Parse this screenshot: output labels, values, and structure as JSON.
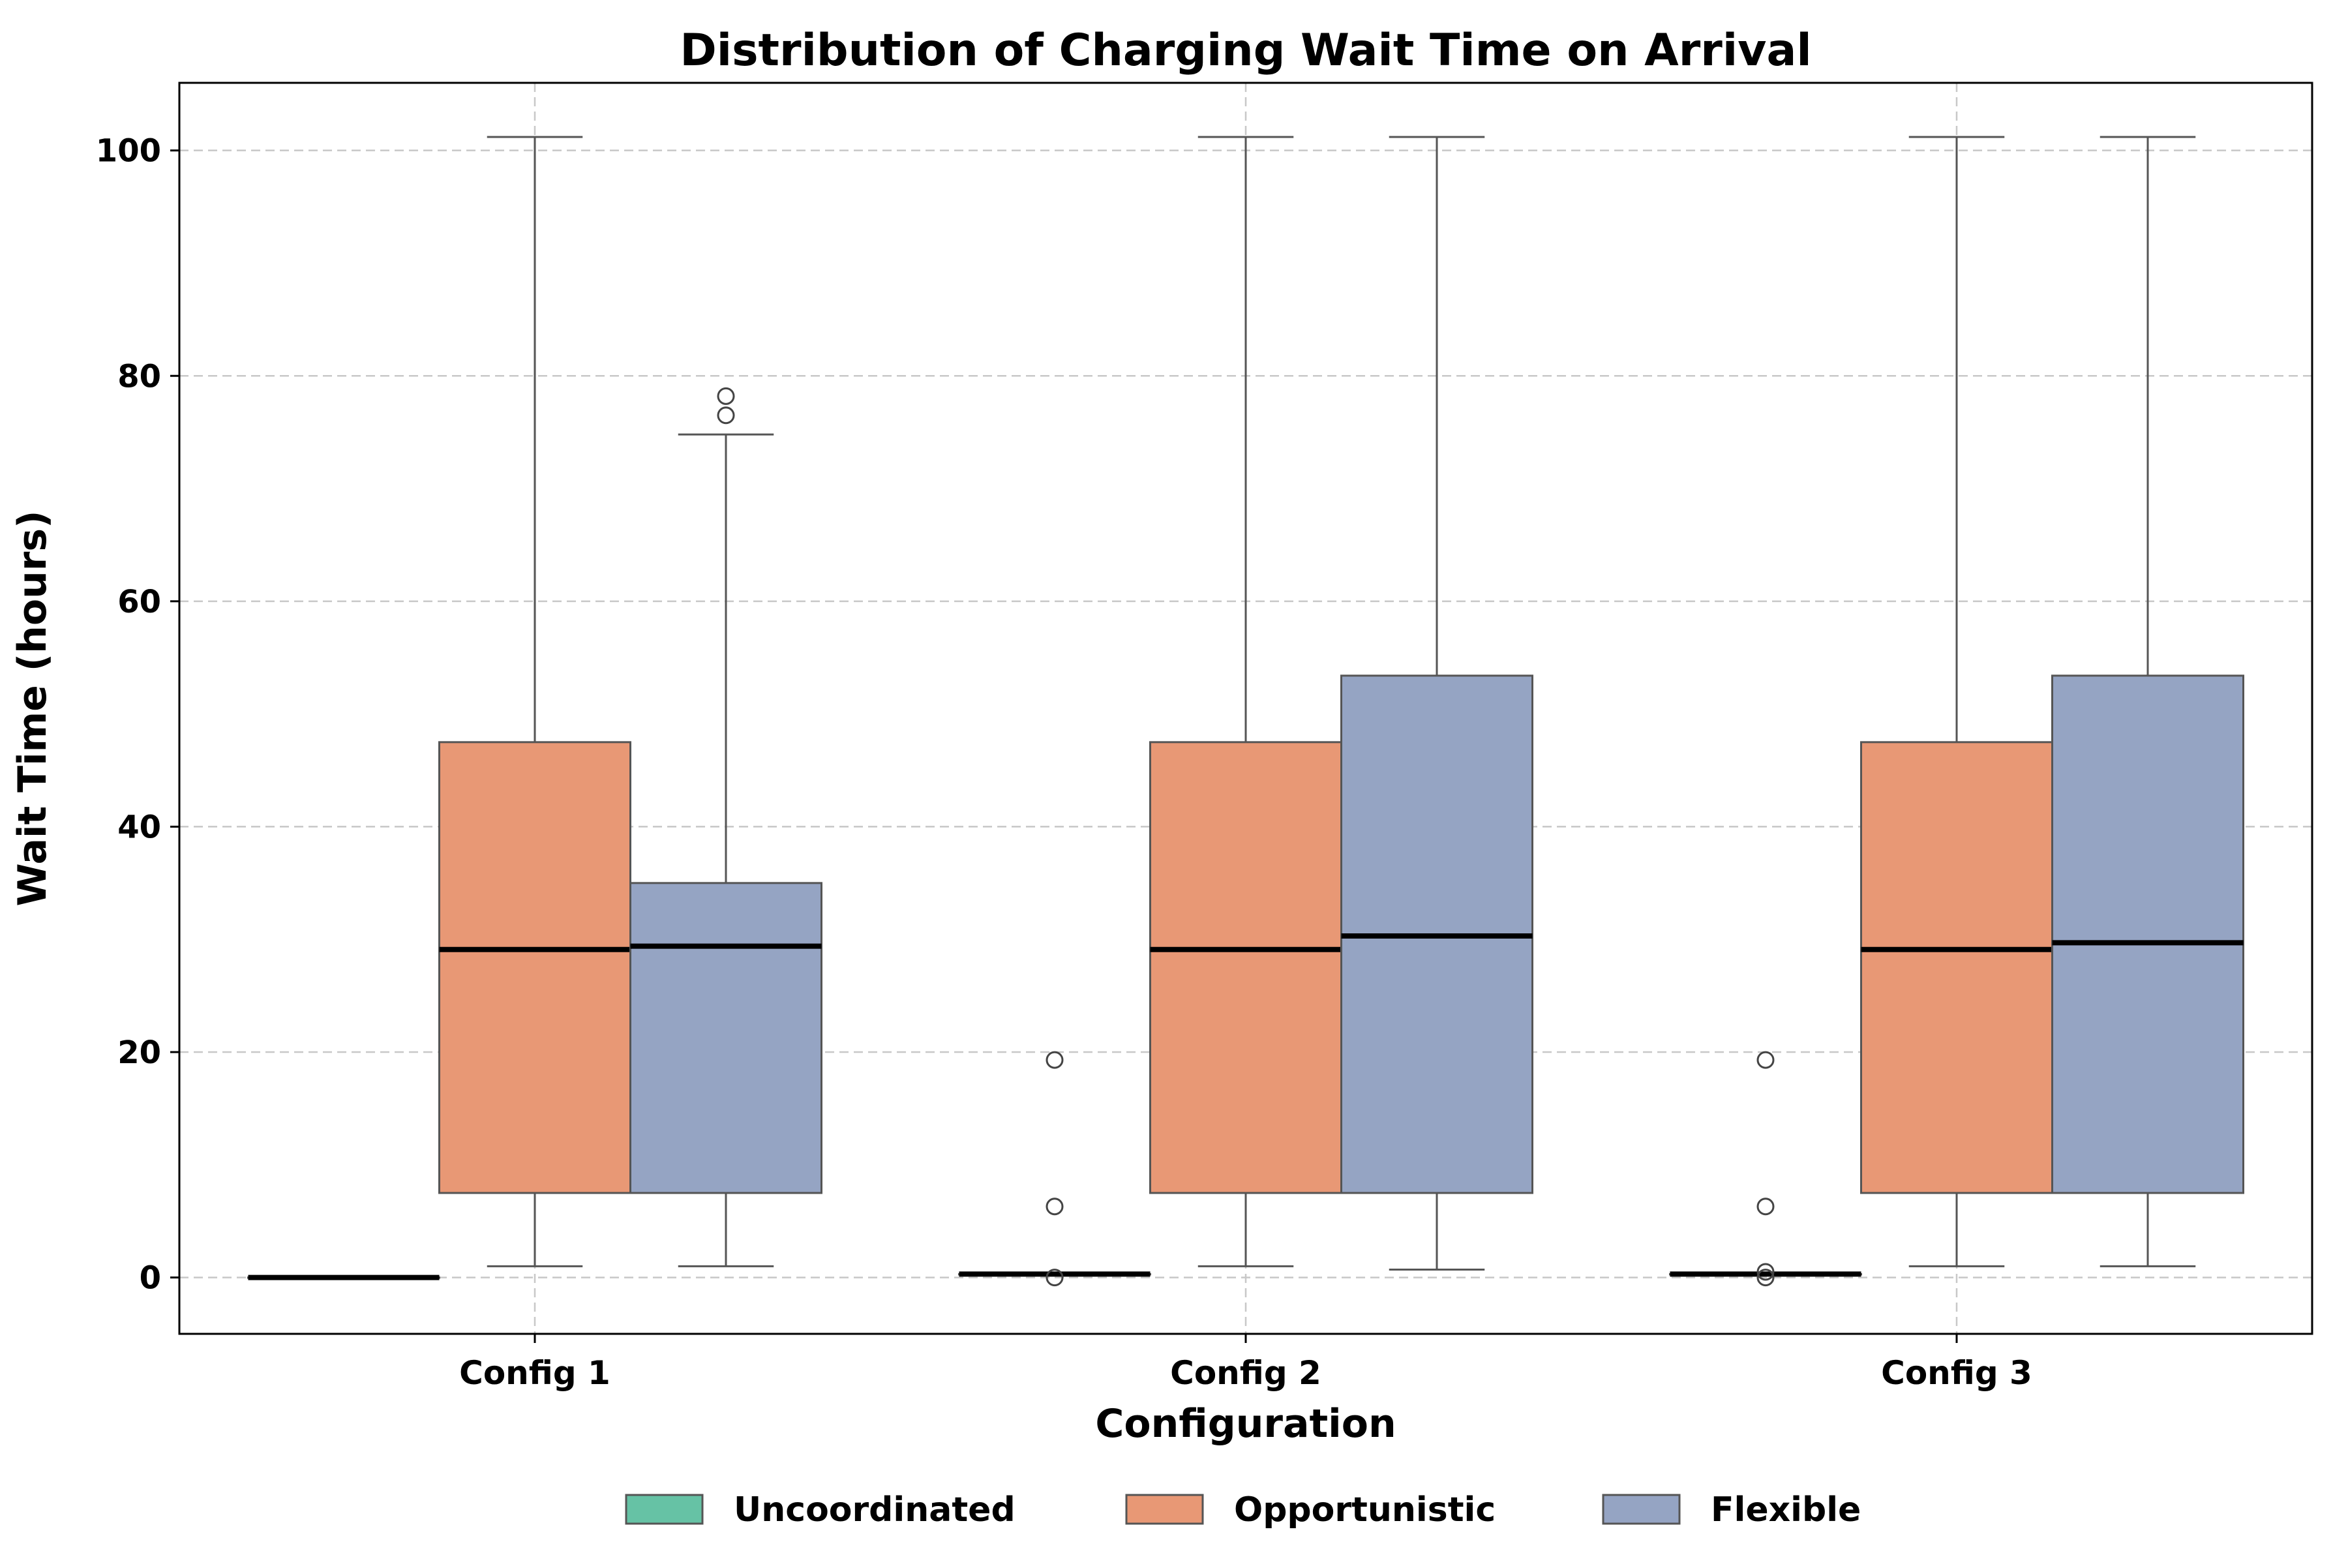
{
  "chart_data": {
    "type": "box",
    "title": "Distribution of Charging Wait Time on Arrival",
    "xlabel": "Configuration",
    "ylabel": "Wait Time (hours)",
    "categories": [
      "Config 1",
      "Config 2",
      "Config 3"
    ],
    "ylim": [
      -5,
      106
    ],
    "yticks": [
      0,
      20,
      40,
      60,
      80,
      100
    ],
    "grid": true,
    "legend_position": "bottom-center",
    "series": [
      {
        "name": "Uncoordinated",
        "color": "#66c2a5",
        "boxes": [
          {
            "whislo": 0.0,
            "q1": 0.0,
            "median": 0.0,
            "q3": 0.0,
            "whishi": 0.0,
            "fliers": []
          },
          {
            "whislo": 0.3,
            "q1": 0.3,
            "median": 0.3,
            "q3": 0.3,
            "whishi": 0.3,
            "fliers": [
              0.0,
              6.3,
              19.3
            ]
          },
          {
            "whislo": 0.3,
            "q1": 0.3,
            "median": 0.3,
            "q3": 0.3,
            "whishi": 0.3,
            "fliers": [
              0.0,
              0.5,
              6.3,
              19.3
            ]
          }
        ]
      },
      {
        "name": "Opportunistic",
        "color": "#e89875",
        "boxes": [
          {
            "whislo": 1.0,
            "q1": 7.5,
            "median": 29.1,
            "q3": 47.5,
            "whishi": 101.2,
            "fliers": []
          },
          {
            "whislo": 1.0,
            "q1": 7.5,
            "median": 29.1,
            "q3": 47.5,
            "whishi": 101.2,
            "fliers": []
          },
          {
            "whislo": 1.0,
            "q1": 7.5,
            "median": 29.1,
            "q3": 47.5,
            "whishi": 101.2,
            "fliers": []
          }
        ]
      },
      {
        "name": "Flexible",
        "color": "#95a4c3",
        "boxes": [
          {
            "whislo": 1.0,
            "q1": 7.5,
            "median": 29.4,
            "q3": 35.0,
            "whishi": 74.8,
            "fliers": [
              76.5,
              78.2
            ]
          },
          {
            "whislo": 0.7,
            "q1": 7.5,
            "median": 30.3,
            "q3": 53.4,
            "whishi": 101.2,
            "fliers": []
          },
          {
            "whislo": 1.0,
            "q1": 7.5,
            "median": 29.7,
            "q3": 53.4,
            "whishi": 101.2,
            "fliers": []
          }
        ]
      }
    ]
  }
}
